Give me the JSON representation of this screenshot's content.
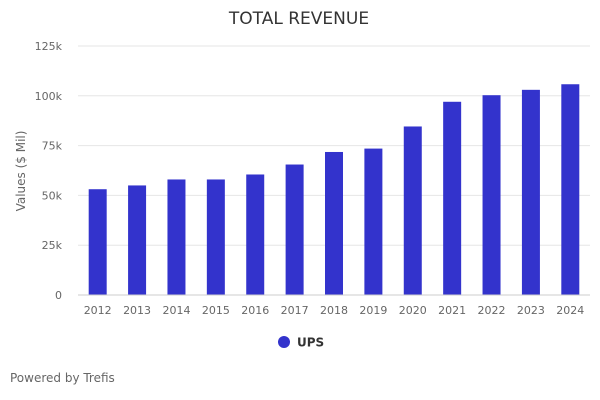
{
  "chart_data": {
    "type": "bar",
    "title": "TOTAL REVENUE",
    "xlabel": "",
    "ylabel": "Values ($ Mil)",
    "categories": [
      "2012",
      "2013",
      "2014",
      "2015",
      "2016",
      "2017",
      "2018",
      "2019",
      "2020",
      "2021",
      "2022",
      "2023",
      "2024"
    ],
    "series": [
      {
        "name": "UPS",
        "color": "#3333cc",
        "values": [
          53100,
          55000,
          58000,
          58000,
          60500,
          65500,
          71800,
          73500,
          84600,
          97000,
          100300,
          103000,
          105800
        ]
      }
    ],
    "ylim": [
      0,
      125000
    ],
    "yticks": [
      {
        "value": 0,
        "label": "0"
      },
      {
        "value": 25000,
        "label": "25k"
      },
      {
        "value": 50000,
        "label": "50k"
      },
      {
        "value": 75000,
        "label": "75k"
      },
      {
        "value": 100000,
        "label": "100k"
      },
      {
        "value": 125000,
        "label": "125k"
      }
    ],
    "grid": true,
    "legend": "bottom-center"
  },
  "credit": "Powered by Trefis"
}
